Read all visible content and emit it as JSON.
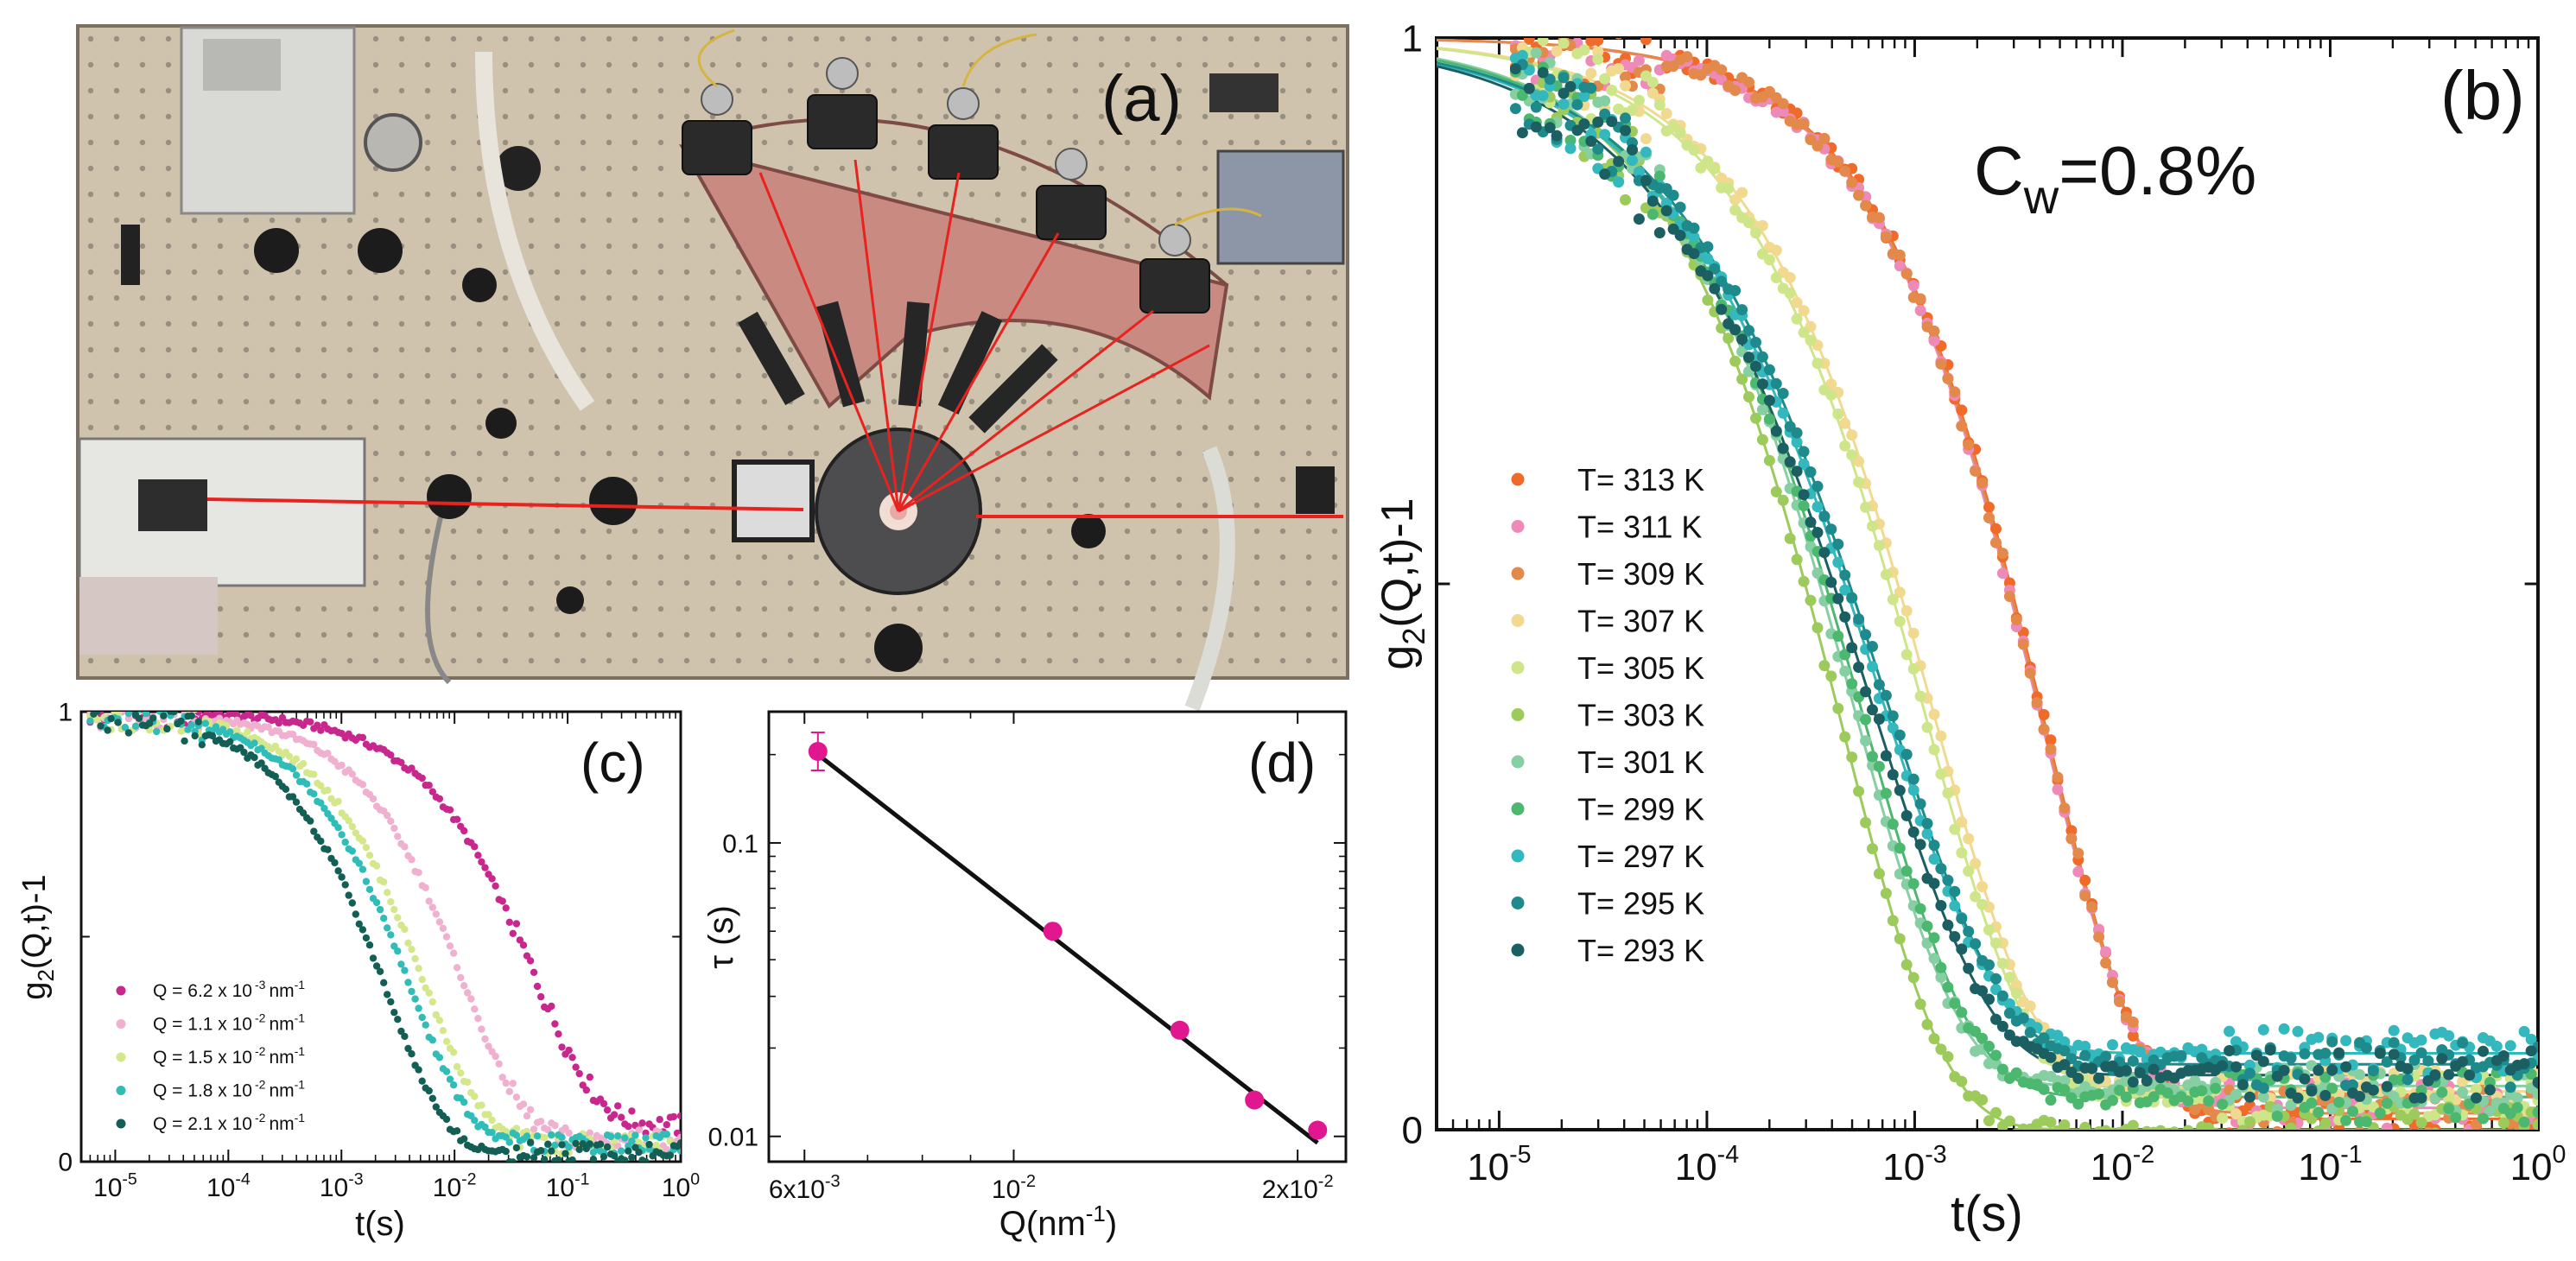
{
  "panel_a": {
    "label": "(a)",
    "photo_description_icon": "optical-setup-photo"
  },
  "colors": {
    "laser": "#e8231f",
    "T313": "#f06a2a",
    "T311": "#ee8ab8",
    "T309": "#e3894b",
    "T307": "#f1d98f",
    "T305": "#cfe58a",
    "T303": "#9ccb5c",
    "T301": "#86cfa3",
    "T299": "#4cb86f",
    "T297": "#33b8bd",
    "T295": "#1e8a8c",
    "T293": "#1b5f63",
    "Q62": "#c8288e",
    "Q110": "#f0b0d0",
    "Q150": "#d4e78a",
    "Q180": "#30bdb8",
    "Q210": "#145f55",
    "d_points": "#e0178f",
    "d_fit": "#111111"
  },
  "chart_data": [
    {
      "id": "b",
      "type": "scatter",
      "panel_label": "(b)",
      "annotation": {
        "main": "C",
        "sub": "w",
        "tail": "=0.8%"
      },
      "xlabel": "t(s)",
      "ylabel_main": "g",
      "ylabel_sub": "2",
      "ylabel_tail": "(Q,t)-1",
      "xscale": "log",
      "xlim": [
        5e-06,
        1
      ],
      "ylim": [
        0,
        1
      ],
      "x_ticks": [
        {
          "base": "10",
          "exp": "-5"
        },
        {
          "base": "10",
          "exp": "-4"
        },
        {
          "base": "10",
          "exp": "-3"
        },
        {
          "base": "10",
          "exp": "-2"
        },
        {
          "base": "10",
          "exp": "-1"
        },
        {
          "base": "10",
          "exp": "0"
        }
      ],
      "y_ticks": [
        "0",
        "1"
      ],
      "legend_position": "center-left",
      "series": [
        {
          "name": "T= 313 K",
          "tau": 0.0042,
          "beta": 0.93,
          "base": 0.01,
          "color_key": "T313"
        },
        {
          "name": "T= 311 K",
          "tau": 0.004,
          "beta": 0.93,
          "base": 0.02,
          "color_key": "T311"
        },
        {
          "name": "T= 309 K",
          "tau": 0.0041,
          "beta": 0.93,
          "base": 0.015,
          "color_key": "T309"
        },
        {
          "name": "T= 307 K",
          "tau": 0.0012,
          "beta": 0.85,
          "base": 0.035,
          "color_key": "T307"
        },
        {
          "name": "T= 305 K",
          "tau": 0.0011,
          "beta": 0.85,
          "base": 0.03,
          "color_key": "T305"
        },
        {
          "name": "T= 303 K",
          "tau": 0.00045,
          "beta": 0.88,
          "base": 0.0,
          "color_key": "T303"
        },
        {
          "name": "T= 301 K",
          "tau": 0.0005,
          "beta": 0.85,
          "base": 0.04,
          "color_key": "T301"
        },
        {
          "name": "T= 299 K",
          "tau": 0.00055,
          "beta": 0.82,
          "base": 0.03,
          "color_key": "T299"
        },
        {
          "name": "T= 297 K",
          "tau": 0.00065,
          "beta": 0.75,
          "base": 0.07,
          "color_key": "T297"
        },
        {
          "name": "T= 295 K",
          "tau": 0.0007,
          "beta": 0.75,
          "base": 0.06,
          "color_key": "T295"
        },
        {
          "name": "T= 293 K",
          "tau": 0.0006,
          "beta": 0.75,
          "base": 0.05,
          "color_key": "T293"
        }
      ]
    },
    {
      "id": "c",
      "type": "scatter",
      "panel_label": "(c)",
      "xlabel": "t(s)",
      "ylabel_main": "g",
      "ylabel_sub": "2",
      "ylabel_tail": "(Q,t)-1",
      "xscale": "log",
      "xlim": [
        5e-06,
        1
      ],
      "ylim": [
        0,
        1
      ],
      "x_ticks": [
        {
          "base": "10",
          "exp": "-5"
        },
        {
          "base": "10",
          "exp": "-4"
        },
        {
          "base": "10",
          "exp": "-3"
        },
        {
          "base": "10",
          "exp": "-2"
        },
        {
          "base": "10",
          "exp": "-1"
        },
        {
          "base": "10",
          "exp": "0"
        }
      ],
      "y_ticks": [
        "0",
        "1"
      ],
      "legend_position": "bottom-left",
      "series": [
        {
          "name": "Q = 6.2 x 10",
          "exp": "-3",
          "unit": "nm",
          "unit_exp": "-1",
          "tau": 0.05,
          "beta": 0.75,
          "base": 0.08,
          "color_key": "Q62"
        },
        {
          "name": "Q = 1.1 x 10",
          "exp": "-2",
          "unit": "nm",
          "unit_exp": "-1",
          "tau": 0.012,
          "beta": 0.8,
          "base": 0.05,
          "color_key": "Q110"
        },
        {
          "name": "Q = 1.5 x 10",
          "exp": "-2",
          "unit": "nm",
          "unit_exp": "-1",
          "tau": 0.0055,
          "beta": 0.8,
          "base": 0.04,
          "color_key": "Q150"
        },
        {
          "name": "Q = 1.8 x 10",
          "exp": "-2",
          "unit": "nm",
          "unit_exp": "-1",
          "tau": 0.004,
          "beta": 0.8,
          "base": 0.04,
          "color_key": "Q180"
        },
        {
          "name": "Q = 2.1 x 10",
          "exp": "-2",
          "unit": "nm",
          "unit_exp": "-1",
          "tau": 0.0025,
          "beta": 0.8,
          "base": 0.02,
          "color_key": "Q210"
        }
      ]
    },
    {
      "id": "d",
      "type": "scatter",
      "panel_label": "(d)",
      "xlabel_main": "Q(nm",
      "xlabel_exp": "-1",
      "xlabel_tail": ")",
      "ylabel": "τ (s)",
      "xscale": "log",
      "yscale": "log",
      "xlim": [
        0.0055,
        0.0225
      ],
      "ylim": [
        0.0082,
        0.28
      ],
      "x_ticks": [
        {
          "value": 0.006,
          "mant": "6x10",
          "exp": "-3"
        },
        {
          "value": 0.01,
          "mant": "10",
          "exp": "-2"
        },
        {
          "value": 0.02,
          "mant": "2x10",
          "exp": "-2"
        }
      ],
      "y_ticks": [
        {
          "value": 0.1,
          "label": "0.1"
        },
        {
          "value": 0.01,
          "label": "0.01"
        }
      ],
      "points": [
        {
          "q": 0.0062,
          "tau": 0.205
        },
        {
          "q": 0.011,
          "tau": 0.05
        },
        {
          "q": 0.015,
          "tau": 0.023
        },
        {
          "q": 0.018,
          "tau": 0.0133
        },
        {
          "q": 0.021,
          "tau": 0.0105
        }
      ],
      "fit": {
        "q1": 0.0062,
        "tau1": 0.2,
        "q2": 0.021,
        "tau2": 0.0095
      }
    }
  ]
}
